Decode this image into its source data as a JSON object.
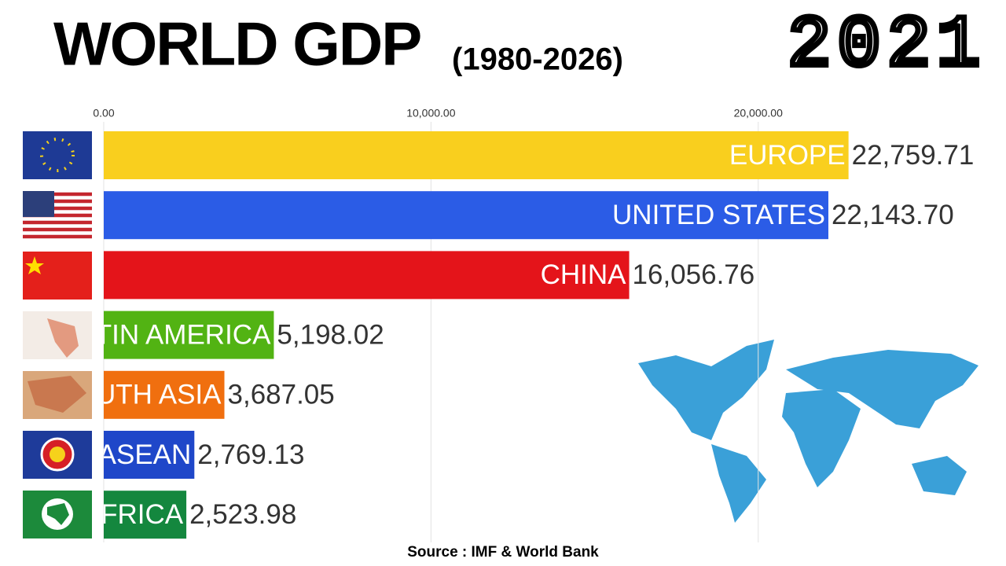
{
  "chart_data": {
    "type": "bar",
    "orientation": "horizontal",
    "title": "WORLD GDP",
    "subtitle": "(1980-2026)",
    "year": "2021",
    "source": "Source : IMF & World Bank",
    "categories": [
      "EUROPE",
      "UNITED STATES",
      "CHINA",
      "LATIN AMERICA",
      "SOUTH ASIA",
      "ASEAN",
      "AFRICA"
    ],
    "values": [
      22759.71,
      22143.7,
      16056.76,
      5198.02,
      3687.05,
      2769.13,
      2523.98
    ],
    "value_labels": [
      "22,759.71",
      "22,143.70",
      "16,056.76",
      "5,198.02",
      "3,687.05",
      "2,769.13",
      "2,523.98"
    ],
    "colors": [
      "#f9cf1e",
      "#2b5ce6",
      "#e4141a",
      "#52b313",
      "#f06f0f",
      "#1f47c9",
      "#14873e"
    ],
    "xlim": [
      0,
      27500
    ],
    "xticks": [
      {
        "value": 0,
        "label": "0.00"
      },
      {
        "value": 10000,
        "label": "10,000.00"
      },
      {
        "value": 20000,
        "label": "20,000.00"
      }
    ],
    "grid": true
  }
}
